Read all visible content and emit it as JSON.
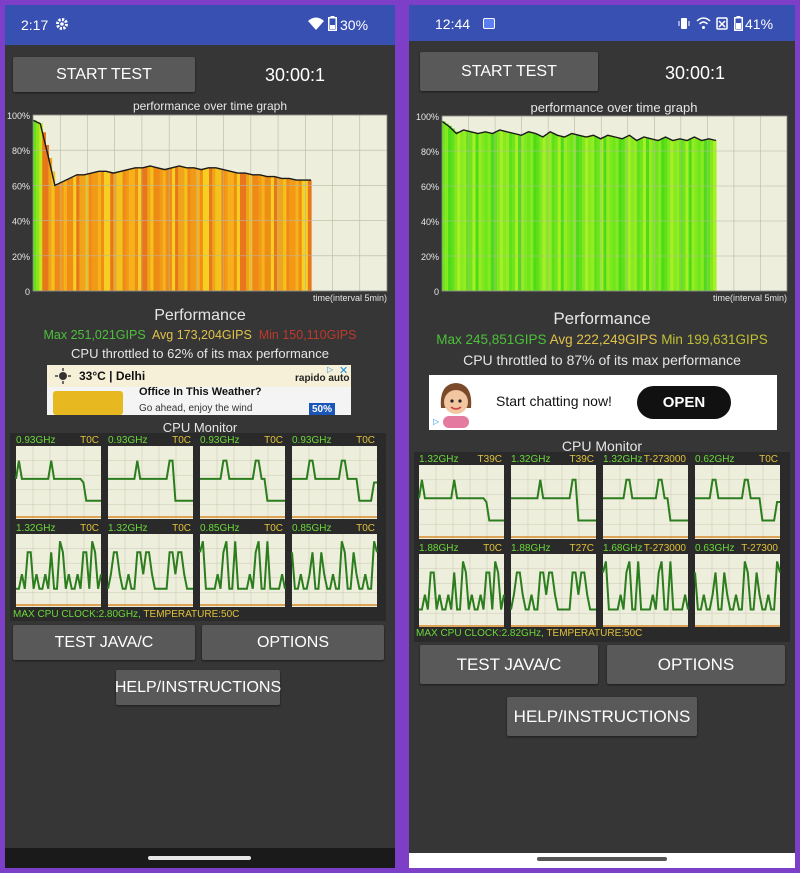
{
  "left": {
    "status": {
      "time": "2:17",
      "battery": "30%"
    },
    "start_label": "START TEST",
    "timer": "30:00:1",
    "graph_title": "performance over time graph",
    "yticks": [
      "100%",
      "80%",
      "60%",
      "40%",
      "20%",
      "0"
    ],
    "xaxis_label": "time(interval 5min)",
    "perf_title": "Performance",
    "max": "Max 251,021GIPS",
    "avg": "Avg 173,204GIPS",
    "min": "Min 150,110GIPS",
    "throttle": "CPU throttled to 62% of its max performance",
    "ad": {
      "temp": "33°C | Delhi",
      "brand": "rapido auto",
      "headline": "Office In This Weather?",
      "sub": "Go ahead, enjoy the wind",
      "badge": "50%"
    },
    "cpu_title": "CPU Monitor",
    "cores": [
      {
        "freq": "0.93GHz",
        "temp": "T0C"
      },
      {
        "freq": "0.93GHz",
        "temp": "T0C"
      },
      {
        "freq": "0.93GHz",
        "temp": "T0C"
      },
      {
        "freq": "0.93GHz",
        "temp": "T0C"
      },
      {
        "freq": "1.32GHz",
        "temp": "T0C"
      },
      {
        "freq": "1.32GHz",
        "temp": "T0C"
      },
      {
        "freq": "0.85GHz",
        "temp": "T0C"
      },
      {
        "freq": "0.85GHz",
        "temp": "T0C"
      }
    ],
    "maxclock": "MAX CPU CLOCK:2.80GHz,",
    "temperature": "TEMPERATURE:50C",
    "test_java": "TEST JAVA/C",
    "options": "OPTIONS",
    "help": "HELP/INSTRUCTIONS"
  },
  "right": {
    "status": {
      "time": "12:44",
      "battery": "41%"
    },
    "start_label": "START TEST",
    "timer": "30:00:1",
    "graph_title": "performance over time graph",
    "yticks": [
      "100%",
      "80%",
      "60%",
      "40%",
      "20%",
      "0"
    ],
    "xaxis_label": "time(interval 5min)",
    "perf_title": "Performance",
    "max": "Max 245,851GIPS",
    "avg": "Avg 222,249GIPS",
    "min": "Min 199,631GIPS",
    "throttle": "CPU throttled to 87% of its max performance",
    "ad": {
      "text": "Start chatting now!",
      "cta": "OPEN"
    },
    "cpu_title": "CPU Monitor",
    "cores": [
      {
        "freq": "1.32GHz",
        "temp": "T39C"
      },
      {
        "freq": "1.32GHz",
        "temp": "T39C"
      },
      {
        "freq": "1.32GHz",
        "temp": "T-273000"
      },
      {
        "freq": "0.62GHz",
        "temp": "T0C"
      },
      {
        "freq": "1.88GHz",
        "temp": "T0C"
      },
      {
        "freq": "1.88GHz",
        "temp": "T27C"
      },
      {
        "freq": "1.68GHz",
        "temp": "T-273000"
      },
      {
        "freq": "0.63GHz",
        "temp": "T-27300"
      }
    ],
    "maxclock": "MAX CPU CLOCK:2.82GHz,",
    "temperature": "TEMPERATURE:50C",
    "test_java": "TEST JAVA/C",
    "options": "OPTIONS",
    "help": "HELP/INSTRUCTIONS"
  },
  "colors": {
    "statusbar": "#3750b2",
    "max": "#4cc13a",
    "avg": "#e1c14a",
    "min": "#c0382c",
    "gridbg": "#eeeedc",
    "core_line": "#2b7d1e"
  },
  "chart_data": [
    {
      "type": "area",
      "y_unit": "%",
      "ylim": [
        0,
        100
      ],
      "x_range": [
        0,
        30
      ],
      "values_left": [
        97,
        95,
        78,
        60,
        62,
        64,
        66,
        66,
        67,
        68,
        68,
        67,
        68,
        69,
        70,
        70,
        71,
        70,
        69,
        70,
        71,
        70,
        70,
        69,
        70,
        70,
        69,
        68,
        67,
        67,
        66,
        66,
        65,
        65,
        64,
        64,
        63,
        63,
        63
      ],
      "values_right": [
        97,
        94,
        90,
        92,
        91,
        90,
        91,
        90,
        92,
        91,
        90,
        89,
        91,
        90,
        88,
        91,
        89,
        88,
        90,
        89,
        88,
        89,
        87,
        89,
        88,
        87,
        89,
        86,
        88,
        87,
        86,
        88,
        86,
        87,
        86,
        88,
        86,
        87,
        86
      ]
    }
  ]
}
